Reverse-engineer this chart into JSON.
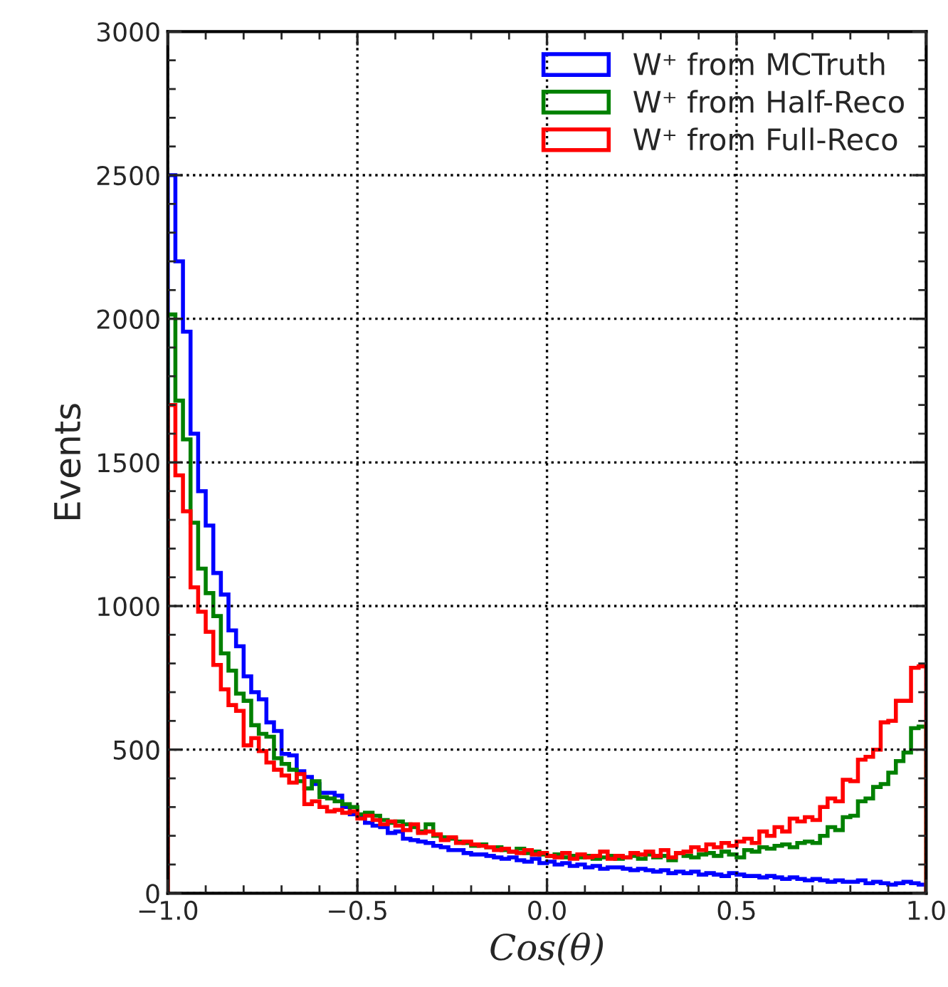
{
  "chart_data": {
    "type": "histogram",
    "xlabel": "Cos(θ)",
    "ylabel": "Events",
    "bins": [
      -1.0,
      -0.98,
      -0.96,
      -0.94,
      -0.92,
      -0.9,
      -0.88,
      -0.86,
      -0.84,
      -0.82,
      -0.8,
      -0.78,
      -0.76,
      -0.74,
      -0.72,
      -0.7,
      -0.68,
      -0.66,
      -0.64,
      -0.62,
      -0.6,
      -0.58,
      -0.56,
      -0.54,
      -0.52,
      -0.5,
      -0.48,
      -0.46,
      -0.44,
      -0.42,
      -0.4,
      -0.38,
      -0.36,
      -0.34,
      -0.32,
      -0.3,
      -0.28,
      -0.26,
      -0.24,
      -0.22,
      -0.2,
      -0.18,
      -0.16,
      -0.14,
      -0.12,
      -0.1,
      -0.08,
      -0.06,
      -0.04,
      -0.02,
      0.0,
      0.02,
      0.04,
      0.06,
      0.08,
      0.1,
      0.12,
      0.14,
      0.16,
      0.18,
      0.2,
      0.22,
      0.24,
      0.26,
      0.28,
      0.3,
      0.32,
      0.34,
      0.36,
      0.38,
      0.4,
      0.42,
      0.44,
      0.46,
      0.48,
      0.5,
      0.52,
      0.54,
      0.56,
      0.58,
      0.6,
      0.62,
      0.64,
      0.66,
      0.68,
      0.7,
      0.72,
      0.74,
      0.76,
      0.78,
      0.8,
      0.82,
      0.84,
      0.86,
      0.88,
      0.9,
      0.92,
      0.94,
      0.96,
      0.98,
      1.0
    ],
    "series": [
      {
        "name": "W⁺ from MCTruth",
        "color": "#0000ff",
        "values": [
          2500,
          2200,
          1955,
          1600,
          1400,
          1280,
          1115,
          1040,
          915,
          860,
          755,
          700,
          675,
          595,
          565,
          485,
          480,
          425,
          405,
          380,
          350,
          350,
          340,
          300,
          275,
          270,
          245,
          235,
          230,
          210,
          215,
          190,
          185,
          180,
          175,
          165,
          160,
          150,
          150,
          140,
          135,
          135,
          130,
          125,
          120,
          125,
          115,
          110,
          120,
          105,
          110,
          100,
          105,
          95,
          100,
          90,
          95,
          85,
          90,
          90,
          85,
          80,
          85,
          80,
          75,
          80,
          70,
          75,
          70,
          75,
          65,
          70,
          65,
          60,
          70,
          65,
          60,
          60,
          55,
          60,
          55,
          50,
          55,
          50,
          45,
          50,
          45,
          40,
          45,
          40,
          40,
          45,
          35,
          40,
          35,
          30,
          35,
          40,
          35,
          30
        ]
      },
      {
        "name": "W⁺ from Half-Reco",
        "color": "#008000",
        "values": [
          2015,
          1715,
          1580,
          1290,
          1130,
          1045,
          965,
          835,
          775,
          695,
          670,
          585,
          555,
          545,
          470,
          450,
          430,
          390,
          365,
          390,
          335,
          330,
          320,
          310,
          300,
          275,
          280,
          270,
          255,
          245,
          250,
          240,
          230,
          215,
          240,
          200,
          195,
          190,
          180,
          175,
          165,
          170,
          160,
          160,
          150,
          145,
          155,
          140,
          145,
          135,
          130,
          135,
          125,
          130,
          125,
          130,
          120,
          125,
          130,
          120,
          125,
          130,
          120,
          135,
          125,
          130,
          115,
          140,
          130,
          125,
          135,
          140,
          130,
          145,
          135,
          125,
          150,
          145,
          160,
          155,
          165,
          170,
          160,
          175,
          180,
          175,
          200,
          230,
          220,
          265,
          270,
          320,
          330,
          370,
          380,
          420,
          460,
          490,
          575,
          580
        ]
      },
      {
        "name": "W⁺ from Full-Reco",
        "color": "#ff0000",
        "values": [
          1700,
          1455,
          1330,
          1065,
          980,
          910,
          795,
          710,
          655,
          635,
          515,
          540,
          495,
          455,
          430,
          410,
          385,
          415,
          310,
          320,
          300,
          285,
          290,
          280,
          285,
          260,
          270,
          255,
          240,
          250,
          235,
          220,
          240,
          210,
          215,
          205,
          185,
          195,
          175,
          180,
          170,
          165,
          160,
          150,
          155,
          145,
          140,
          150,
          135,
          140,
          130,
          125,
          140,
          120,
          135,
          125,
          130,
          145,
          120,
          130,
          125,
          140,
          135,
          145,
          130,
          150,
          125,
          140,
          145,
          160,
          150,
          170,
          160,
          175,
          165,
          180,
          190,
          175,
          215,
          200,
          230,
          215,
          260,
          250,
          265,
          255,
          300,
          330,
          320,
          395,
          390,
          465,
          475,
          500,
          595,
          600,
          670,
          670,
          785,
          790
        ]
      }
    ],
    "xlim": [
      -1.0,
      1.0
    ],
    "ylim": [
      0,
      3000
    ],
    "xticks": [
      {
        "value": -1.0,
        "label": "−1.0"
      },
      {
        "value": -0.5,
        "label": "−0.5"
      },
      {
        "value": 0.0,
        "label": "0.0"
      },
      {
        "value": 0.5,
        "label": "0.5"
      },
      {
        "value": 1.0,
        "label": "1.0"
      }
    ],
    "yticks": [
      0,
      500,
      1000,
      1500,
      2000,
      2500,
      3000
    ],
    "grid": true,
    "legend": "top right"
  }
}
